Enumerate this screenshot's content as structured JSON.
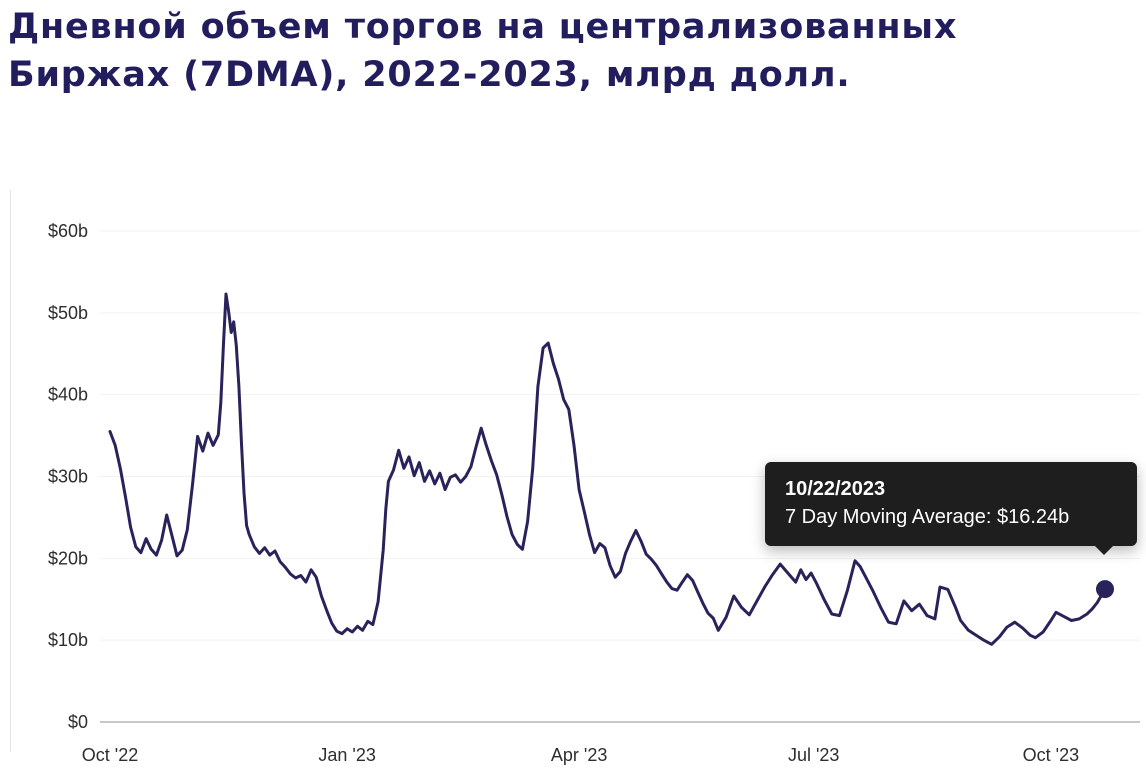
{
  "page": {
    "title": "Дневной объем торгов на централизованных Биржах (7DMA), 2022-2023, млрд долл.",
    "title_line1": "Дневной объем торгов на централизованных",
    "title_line2": "Биржах (7DMA), 2022-2023, млрд долл."
  },
  "tooltip": {
    "date": "10/22/2023",
    "label": "7 Day Moving Average: $16.24b"
  },
  "colors": {
    "title": "#221d5d",
    "line": "#29235c",
    "dot": "#29235c",
    "axis_label": "#2e2e2e",
    "axis_line": "#c8c8c8",
    "grid_line": "#f2f2f2",
    "tooltip_bg": "#1e1e1e",
    "tooltip_text": "#ffffff"
  },
  "chart_data": {
    "type": "line",
    "title": "Дневной объем торгов на централизованных Биржах (7DMA), 2022-2023, млрд долл.",
    "series_name": "7 Day Moving Average",
    "unit": "$ billions per day",
    "xlabel": "",
    "ylabel": "",
    "ylim": [
      0,
      60
    ],
    "grid": "none",
    "legend": "none",
    "x_domain_days": [
      0,
      386
    ],
    "x_start_date": "10/01/2022",
    "y_ticks": [
      {
        "v": 0,
        "label": "$0"
      },
      {
        "v": 10,
        "label": "$10b"
      },
      {
        "v": 20,
        "label": "$20b"
      },
      {
        "v": 30,
        "label": "$30b"
      },
      {
        "v": 40,
        "label": "$40b"
      },
      {
        "v": 50,
        "label": "$50b"
      },
      {
        "v": 60,
        "label": "$60b"
      }
    ],
    "x_ticks": [
      {
        "day": 0,
        "label": "Oct '22"
      },
      {
        "day": 92,
        "label": "Jan '23"
      },
      {
        "day": 182,
        "label": "Apr '23"
      },
      {
        "day": 273,
        "label": "Jul '23"
      },
      {
        "day": 365,
        "label": "Oct '23"
      }
    ],
    "points": [
      [
        0,
        35.5
      ],
      [
        2,
        33.8
      ],
      [
        4,
        31.0
      ],
      [
        6,
        27.5
      ],
      [
        8,
        23.8
      ],
      [
        10,
        21.4
      ],
      [
        12,
        20.7
      ],
      [
        14,
        22.4
      ],
      [
        16,
        21.1
      ],
      [
        18,
        20.4
      ],
      [
        20,
        22.2
      ],
      [
        22,
        25.3
      ],
      [
        24,
        22.8
      ],
      [
        26,
        20.3
      ],
      [
        28,
        21.0
      ],
      [
        30,
        23.5
      ],
      [
        32,
        29.0
      ],
      [
        34,
        34.9
      ],
      [
        36,
        33.1
      ],
      [
        38,
        35.3
      ],
      [
        40,
        33.8
      ],
      [
        42,
        35.1
      ],
      [
        43,
        39.0
      ],
      [
        44,
        46.0
      ],
      [
        45,
        52.3
      ],
      [
        46,
        50.2
      ],
      [
        47,
        47.6
      ],
      [
        48,
        48.9
      ],
      [
        49,
        46.0
      ],
      [
        50,
        41.0
      ],
      [
        51,
        34.0
      ],
      [
        52,
        28.0
      ],
      [
        53,
        24.0
      ],
      [
        54,
        22.9
      ],
      [
        56,
        21.4
      ],
      [
        58,
        20.6
      ],
      [
        60,
        21.3
      ],
      [
        62,
        20.4
      ],
      [
        64,
        20.9
      ],
      [
        66,
        19.6
      ],
      [
        68,
        18.9
      ],
      [
        70,
        18.1
      ],
      [
        72,
        17.6
      ],
      [
        74,
        17.9
      ],
      [
        76,
        17.1
      ],
      [
        78,
        18.6
      ],
      [
        80,
        17.7
      ],
      [
        82,
        15.4
      ],
      [
        84,
        13.7
      ],
      [
        86,
        12.1
      ],
      [
        88,
        11.1
      ],
      [
        90,
        10.8
      ],
      [
        92,
        11.4
      ],
      [
        94,
        11.0
      ],
      [
        96,
        11.7
      ],
      [
        98,
        11.2
      ],
      [
        100,
        12.3
      ],
      [
        102,
        11.9
      ],
      [
        104,
        14.7
      ],
      [
        106,
        21.0
      ],
      [
        107,
        26.0
      ],
      [
        108,
        29.4
      ],
      [
        110,
        30.8
      ],
      [
        112,
        33.2
      ],
      [
        114,
        31.0
      ],
      [
        116,
        32.4
      ],
      [
        118,
        30.1
      ],
      [
        120,
        31.7
      ],
      [
        122,
        29.4
      ],
      [
        124,
        30.7
      ],
      [
        126,
        29.1
      ],
      [
        128,
        30.4
      ],
      [
        130,
        28.4
      ],
      [
        132,
        29.9
      ],
      [
        134,
        30.2
      ],
      [
        136,
        29.3
      ],
      [
        138,
        30.0
      ],
      [
        140,
        31.2
      ],
      [
        142,
        33.6
      ],
      [
        144,
        35.9
      ],
      [
        146,
        33.8
      ],
      [
        148,
        31.9
      ],
      [
        150,
        30.2
      ],
      [
        152,
        27.8
      ],
      [
        154,
        25.1
      ],
      [
        156,
        22.9
      ],
      [
        158,
        21.7
      ],
      [
        160,
        21.1
      ],
      [
        162,
        24.5
      ],
      [
        164,
        31.0
      ],
      [
        166,
        41.0
      ],
      [
        168,
        45.7
      ],
      [
        170,
        46.3
      ],
      [
        172,
        43.8
      ],
      [
        174,
        41.9
      ],
      [
        176,
        39.4
      ],
      [
        178,
        38.2
      ],
      [
        180,
        33.8
      ],
      [
        182,
        28.4
      ],
      [
        184,
        25.7
      ],
      [
        186,
        22.9
      ],
      [
        188,
        20.7
      ],
      [
        190,
        21.8
      ],
      [
        192,
        21.3
      ],
      [
        194,
        19.1
      ],
      [
        196,
        17.7
      ],
      [
        198,
        18.4
      ],
      [
        200,
        20.6
      ],
      [
        202,
        22.1
      ],
      [
        204,
        23.4
      ],
      [
        206,
        22.1
      ],
      [
        208,
        20.5
      ],
      [
        210,
        19.9
      ],
      [
        212,
        19.1
      ],
      [
        214,
        18.1
      ],
      [
        216,
        17.1
      ],
      [
        218,
        16.3
      ],
      [
        220,
        16.1
      ],
      [
        222,
        17.1
      ],
      [
        224,
        18.0
      ],
      [
        226,
        17.3
      ],
      [
        228,
        15.9
      ],
      [
        230,
        14.5
      ],
      [
        232,
        13.3
      ],
      [
        234,
        12.7
      ],
      [
        236,
        11.2
      ],
      [
        239,
        12.8
      ],
      [
        242,
        15.4
      ],
      [
        245,
        14.0
      ],
      [
        248,
        13.1
      ],
      [
        251,
        14.8
      ],
      [
        254,
        16.5
      ],
      [
        257,
        18.0
      ],
      [
        260,
        19.3
      ],
      [
        263,
        18.2
      ],
      [
        266,
        17.1
      ],
      [
        268,
        18.6
      ],
      [
        270,
        17.4
      ],
      [
        272,
        18.2
      ],
      [
        274,
        17.0
      ],
      [
        277,
        15.0
      ],
      [
        280,
        13.2
      ],
      [
        283,
        13.0
      ],
      [
        286,
        16.0
      ],
      [
        289,
        19.7
      ],
      [
        291,
        19.0
      ],
      [
        293,
        17.8
      ],
      [
        296,
        16.0
      ],
      [
        299,
        14.0
      ],
      [
        302,
        12.2
      ],
      [
        305,
        12.0
      ],
      [
        308,
        14.8
      ],
      [
        311,
        13.6
      ],
      [
        314,
        14.4
      ],
      [
        317,
        13.0
      ],
      [
        320,
        12.6
      ],
      [
        322,
        16.5
      ],
      [
        325,
        16.2
      ],
      [
        328,
        14.0
      ],
      [
        330,
        12.4
      ],
      [
        333,
        11.2
      ],
      [
        336,
        10.6
      ],
      [
        339,
        10.0
      ],
      [
        342,
        9.5
      ],
      [
        345,
        10.4
      ],
      [
        348,
        11.6
      ],
      [
        351,
        12.2
      ],
      [
        354,
        11.5
      ],
      [
        357,
        10.6
      ],
      [
        359,
        10.3
      ],
      [
        362,
        11.0
      ],
      [
        365,
        12.4
      ],
      [
        367,
        13.4
      ],
      [
        370,
        12.9
      ],
      [
        373,
        12.4
      ],
      [
        376,
        12.6
      ],
      [
        379,
        13.2
      ],
      [
        381,
        13.8
      ],
      [
        383,
        14.6
      ],
      [
        386,
        16.24
      ]
    ],
    "end_point": {
      "day": 386,
      "value": 16.24,
      "date": "10/22/2023"
    }
  }
}
